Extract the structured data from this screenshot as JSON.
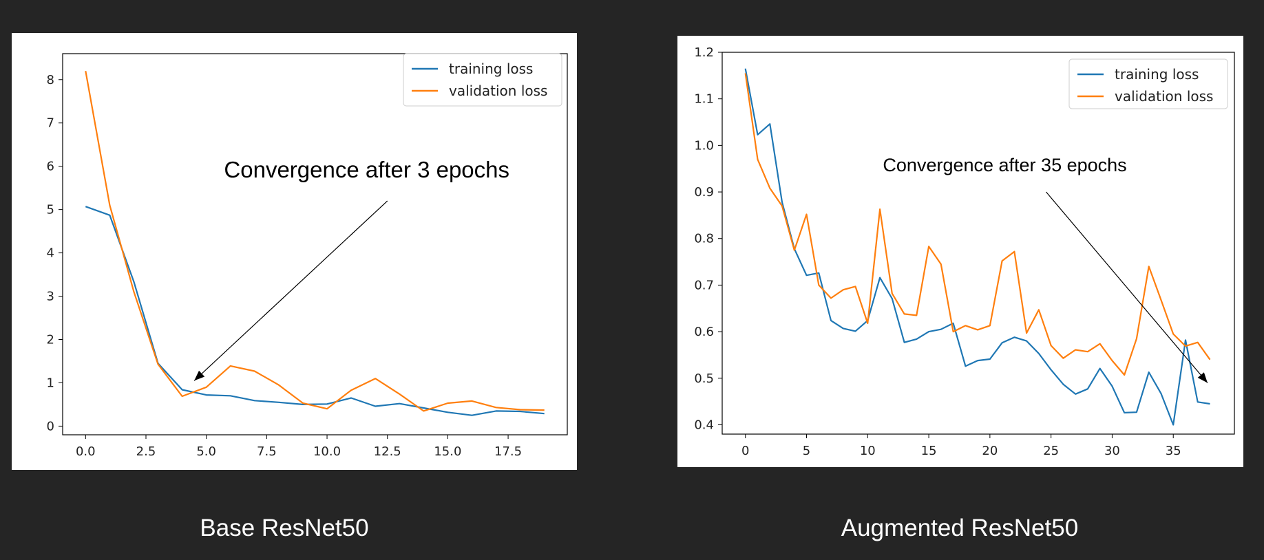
{
  "colors": {
    "training": "#1f77b4",
    "validation": "#ff7f0e",
    "background": "#252525"
  },
  "captions": {
    "left": "Base ResNet50",
    "right": "Augmented ResNet50"
  },
  "chart_data": [
    {
      "type": "line",
      "caption": "Base ResNet50",
      "xlim": [
        -0.95,
        19.95
      ],
      "ylim": [
        -0.2,
        8.6
      ],
      "xticks": [
        0,
        2.5,
        5,
        7.5,
        10,
        12.5,
        15,
        17.5
      ],
      "xtick_labels": [
        "0.0",
        "2.5",
        "5.0",
        "7.5",
        "10.0",
        "12.5",
        "15.0",
        "17.5"
      ],
      "yticks": [
        0,
        1,
        2,
        3,
        4,
        5,
        6,
        7,
        8
      ],
      "ytick_labels": [
        "0",
        "1",
        "2",
        "3",
        "4",
        "5",
        "6",
        "7",
        "8"
      ],
      "x": [
        0,
        1,
        2,
        3,
        4,
        5,
        6,
        7,
        8,
        9,
        10,
        11,
        12,
        13,
        14,
        15,
        16,
        17,
        18,
        19
      ],
      "series": [
        {
          "name": "training loss",
          "values": [
            5.07,
            4.87,
            3.33,
            1.45,
            0.84,
            0.72,
            0.7,
            0.59,
            0.55,
            0.5,
            0.51,
            0.65,
            0.46,
            0.52,
            0.42,
            0.32,
            0.25,
            0.35,
            0.34,
            0.29
          ]
        },
        {
          "name": "validation loss",
          "values": [
            8.2,
            5.1,
            3.1,
            1.43,
            0.69,
            0.9,
            1.39,
            1.27,
            0.95,
            0.53,
            0.4,
            0.83,
            1.1,
            0.74,
            0.35,
            0.53,
            0.58,
            0.43,
            0.38,
            0.37
          ]
        }
      ],
      "legend_position": "top-right",
      "annotation": {
        "text": "Convergence after 3 epochs",
        "xy": [
          4.5,
          1.05
        ],
        "text_anchor": [
          12.5,
          5.2
        ]
      }
    },
    {
      "type": "line",
      "caption": "Augmented ResNet50",
      "xlim": [
        -1.9,
        40.0
      ],
      "ylim": [
        0.38,
        1.2
      ],
      "xticks": [
        0,
        5,
        10,
        15,
        20,
        25,
        30,
        35
      ],
      "xtick_labels": [
        "0",
        "5",
        "10",
        "15",
        "20",
        "25",
        "30",
        "35"
      ],
      "yticks": [
        0.4,
        0.5,
        0.6,
        0.7,
        0.8,
        0.9,
        1.0,
        1.1,
        1.2
      ],
      "ytick_labels": [
        "0.4",
        "0.5",
        "0.6",
        "0.7",
        "0.8",
        "0.9",
        "1.0",
        "1.1",
        "1.2"
      ],
      "x": [
        0,
        1,
        2,
        3,
        4,
        5,
        6,
        7,
        8,
        9,
        10,
        11,
        12,
        13,
        14,
        15,
        16,
        17,
        18,
        19,
        20,
        21,
        22,
        23,
        24,
        25,
        26,
        27,
        28,
        29,
        30,
        31,
        32,
        33,
        34,
        35,
        36,
        37,
        38
      ],
      "series": [
        {
          "name": "training loss",
          "values": [
            1.165,
            1.023,
            1.046,
            0.878,
            0.778,
            0.721,
            0.726,
            0.624,
            0.607,
            0.601,
            0.624,
            0.716,
            0.671,
            0.577,
            0.584,
            0.6,
            0.605,
            0.618,
            0.526,
            0.538,
            0.541,
            0.576,
            0.588,
            0.58,
            0.553,
            0.518,
            0.487,
            0.466,
            0.477,
            0.521,
            0.483,
            0.426,
            0.427,
            0.513,
            0.467,
            0.4,
            0.582,
            0.449,
            0.445
          ]
        },
        {
          "name": "validation loss",
          "values": [
            1.155,
            0.97,
            0.908,
            0.87,
            0.775,
            0.852,
            0.7,
            0.672,
            0.69,
            0.697,
            0.618,
            0.863,
            0.682,
            0.638,
            0.635,
            0.783,
            0.745,
            0.6,
            0.613,
            0.604,
            0.613,
            0.752,
            0.772,
            0.597,
            0.647,
            0.57,
            0.543,
            0.561,
            0.557,
            0.574,
            0.538,
            0.507,
            0.585,
            0.74,
            0.668,
            0.595,
            0.569,
            0.577,
            0.54
          ]
        }
      ],
      "legend_position": "top-right",
      "annotation": {
        "text": "Convergence after 35 epochs",
        "xy": [
          37.8,
          0.49
        ],
        "text_anchor": [
          24.6,
          0.9
        ]
      }
    }
  ]
}
